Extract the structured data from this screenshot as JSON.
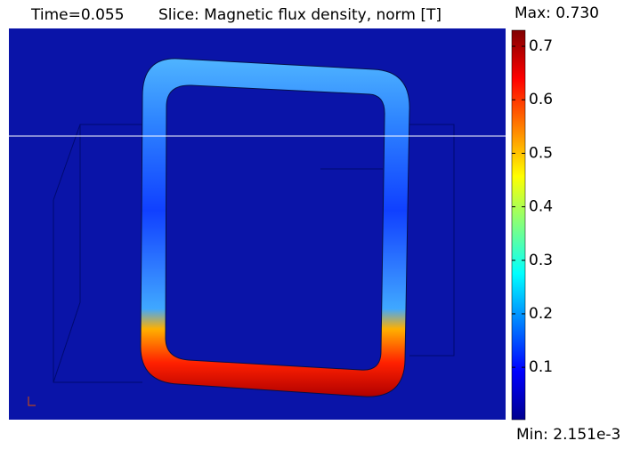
{
  "chart_data": {
    "type": "slice",
    "title": "Time=0.055",
    "subtitle": "Slice: Magnetic flux density, norm [T]",
    "max_label": "Max: 0.730",
    "min_label": "Min: 2.151e-3",
    "ylim": [
      0.002151,
      0.73
    ],
    "yticks": [
      0.1,
      0.2,
      0.3,
      0.4,
      0.5,
      0.6,
      0.7
    ],
    "colormap": [
      "#00008f",
      "#0000ff",
      "#0080ff",
      "#00ffff",
      "#80ff80",
      "#ffff00",
      "#ff8000",
      "#ff0000",
      "#800000"
    ]
  }
}
